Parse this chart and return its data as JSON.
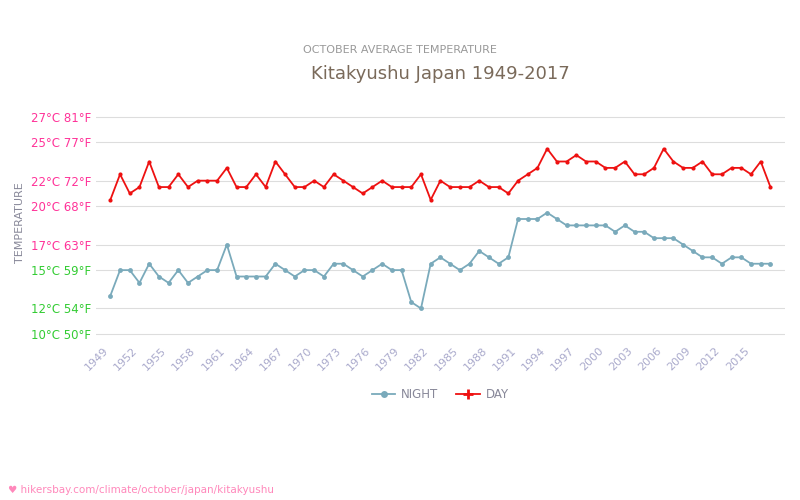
{
  "title": "Kitakyushu Japan 1949-2017",
  "subtitle": "OCTOBER AVERAGE TEMPERATURE",
  "xlabel_url": "♥ hikersbay.com/climate/october/japan/kitakyushu",
  "ylabel": "TEMPERATURE",
  "years": [
    1949,
    1950,
    1951,
    1952,
    1953,
    1954,
    1955,
    1956,
    1957,
    1958,
    1959,
    1960,
    1961,
    1962,
    1963,
    1964,
    1965,
    1966,
    1967,
    1968,
    1969,
    1970,
    1971,
    1972,
    1973,
    1974,
    1975,
    1976,
    1977,
    1978,
    1979,
    1980,
    1981,
    1982,
    1983,
    1984,
    1985,
    1986,
    1987,
    1988,
    1989,
    1990,
    1991,
    1992,
    1993,
    1994,
    1995,
    1996,
    1997,
    1998,
    1999,
    2000,
    2001,
    2002,
    2003,
    2004,
    2005,
    2006,
    2007,
    2008,
    2009,
    2010,
    2011,
    2012,
    2013,
    2014,
    2015,
    2016,
    2017
  ],
  "day_temps": [
    20.5,
    22.5,
    21.0,
    21.5,
    23.5,
    21.5,
    21.5,
    22.5,
    21.5,
    22.0,
    22.0,
    22.0,
    23.0,
    21.5,
    21.5,
    22.5,
    21.5,
    23.5,
    22.5,
    21.5,
    21.5,
    22.0,
    21.5,
    22.5,
    22.0,
    21.5,
    21.0,
    21.5,
    22.0,
    21.5,
    21.5,
    21.5,
    22.5,
    20.5,
    22.0,
    21.5,
    21.5,
    21.5,
    22.0,
    21.5,
    21.5,
    21.0,
    22.0,
    22.5,
    23.0,
    24.5,
    23.5,
    23.5,
    24.0,
    23.5,
    23.5,
    23.0,
    23.0,
    23.5,
    22.5,
    22.5,
    23.0,
    24.5,
    23.5,
    23.0,
    23.0,
    23.5,
    22.5,
    22.5,
    23.0,
    23.0,
    22.5,
    23.5,
    21.5
  ],
  "night_temps": [
    13.0,
    15.0,
    15.0,
    14.0,
    15.5,
    14.5,
    14.0,
    15.0,
    14.0,
    14.5,
    15.0,
    15.0,
    17.0,
    14.5,
    14.5,
    14.5,
    14.5,
    15.5,
    15.0,
    14.5,
    15.0,
    15.0,
    14.5,
    15.5,
    15.5,
    15.0,
    14.5,
    15.0,
    15.5,
    15.0,
    15.0,
    12.5,
    12.0,
    15.5,
    16.0,
    15.5,
    15.0,
    15.5,
    16.5,
    16.0,
    15.5,
    16.0,
    19.0,
    19.0,
    19.0,
    19.5,
    19.0,
    18.5,
    18.5,
    18.5,
    18.5,
    18.5,
    18.0,
    18.5,
    18.0,
    18.0,
    17.5,
    17.5,
    17.5,
    17.0,
    16.5,
    16.0,
    16.0,
    15.5,
    16.0,
    16.0,
    15.5,
    15.5,
    15.5
  ],
  "yticks_c": [
    10,
    12,
    15,
    17,
    20,
    22,
    25,
    27
  ],
  "yticks_label": [
    "10°C 50°F",
    "12°C 54°F",
    "15°C 59°F",
    "17°C 63°F",
    "20°C 68°F",
    "22°C 72°F",
    "25°C 77°F",
    "27°C 81°F"
  ],
  "ytick_colors": [
    "#33cc33",
    "#33cc33",
    "#33cc33",
    "#ff3399",
    "#ff3399",
    "#ff3399",
    "#ff3399",
    "#ff3399"
  ],
  "ylim": [
    9.5,
    28
  ],
  "xlim": [
    1947.5,
    2018.5
  ],
  "xtick_years": [
    1949,
    1952,
    1955,
    1958,
    1961,
    1964,
    1967,
    1970,
    1973,
    1976,
    1979,
    1982,
    1985,
    1988,
    1991,
    1994,
    1997,
    2000,
    2003,
    2006,
    2009,
    2012,
    2015
  ],
  "day_color": "#ee1111",
  "night_color": "#7aaabb",
  "title_color": "#7a6a5a",
  "subtitle_color": "#999999",
  "grid_color": "#dddddd",
  "bg_color": "#ffffff",
  "url_color": "#ff88bb",
  "axis_label_color": "#888899",
  "xtick_color": "#aaaacc"
}
